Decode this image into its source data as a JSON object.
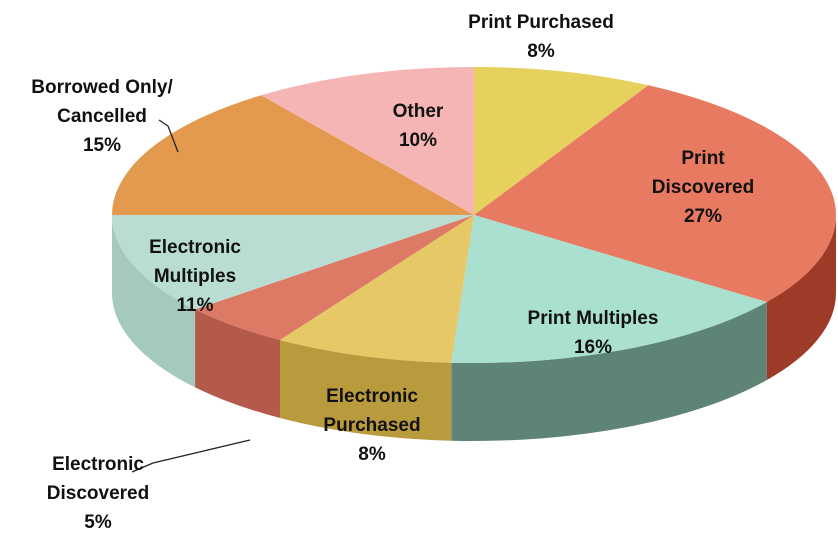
{
  "chart_data": {
    "type": "pie",
    "style": "3d",
    "slices": [
      {
        "label_lines": [
          "Print Purchased",
          "8%"
        ],
        "value": 8,
        "color": "#E6D15E",
        "side": "#B9A43A"
      },
      {
        "label_lines": [
          "Print",
          "Discovered",
          "27%"
        ],
        "value": 27,
        "color": "#E87A61",
        "side": "#9E3A28"
      },
      {
        "label_lines": [
          "Print Multiples",
          "16%"
        ],
        "value": 16,
        "color": "#A9E0CF",
        "side": "#5E8475"
      },
      {
        "label_lines": [
          "Electronic",
          "Purchased",
          "8%"
        ],
        "value": 8,
        "color": "#E6C867",
        "side": "#B99B3E"
      },
      {
        "label_lines": [
          "Electronic",
          "Discovered",
          "5%"
        ],
        "value": 5,
        "color": "#DD7A66",
        "side": "#B45A4B"
      },
      {
        "label_lines": [
          "Electronic",
          "Multiples",
          "11%"
        ],
        "value": 11,
        "color": "#B9DDD2",
        "side": "#A3CABD"
      },
      {
        "label_lines": [
          "Borrowed Only/",
          "Cancelled",
          "15%"
        ],
        "value": 15,
        "color": "#E39A4E",
        "side": "#C8702F"
      },
      {
        "label_lines": [
          "Other",
          "10%"
        ],
        "value": 10,
        "color": "#F6B5B5",
        "side": "#E08F8F"
      }
    ]
  }
}
